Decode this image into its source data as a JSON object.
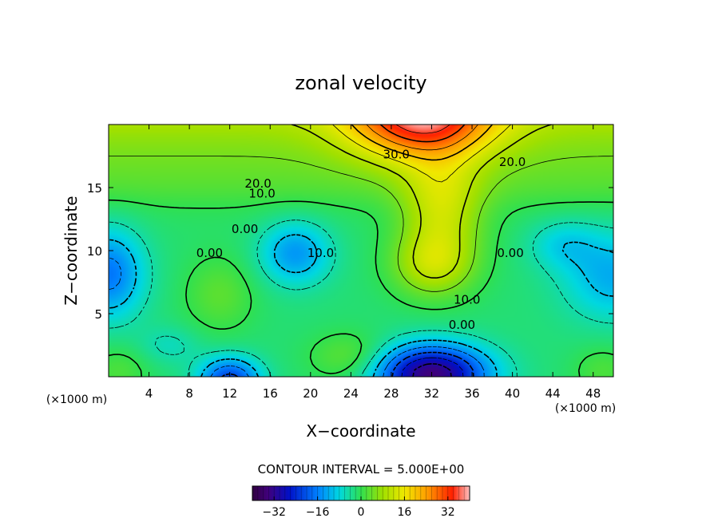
{
  "chart_data": {
    "type": "heatmap",
    "title": "zonal velocity",
    "xlabel": "X−coordinate",
    "ylabel": "Z−coordinate",
    "x_unit_left": "(×1000 m)",
    "x_unit_right": "(×1000 m)",
    "xlim": [
      0,
      50
    ],
    "ylim": [
      0,
      20
    ],
    "x_ticks": [
      4,
      8,
      12,
      16,
      20,
      24,
      28,
      32,
      36,
      40,
      44,
      48
    ],
    "y_ticks": [
      5,
      10,
      15
    ],
    "contour_interval_text": "CONTOUR INTERVAL = 5.000E+00",
    "contour_labels": [
      {
        "text": "30.0",
        "x": 28.5,
        "y": 17.3
      },
      {
        "text": "20.0",
        "x": 40.0,
        "y": 16.7
      },
      {
        "text": "20.0",
        "x": 14.8,
        "y": 15.0
      },
      {
        "text": "10.0",
        "x": 15.2,
        "y": 14.2
      },
      {
        "text": "0.00",
        "x": 13.5,
        "y": 11.4
      },
      {
        "text": "0.00",
        "x": 10.0,
        "y": 9.5
      },
      {
        "text": "10.0",
        "x": 21.0,
        "y": 9.5
      },
      {
        "text": "0.00",
        "x": 39.8,
        "y": 9.5
      },
      {
        "text": "10.0",
        "x": 35.5,
        "y": 5.8
      },
      {
        "text": "0.00",
        "x": 35.0,
        "y": 3.8
      }
    ],
    "colorbar": {
      "ticks": [
        -32,
        -16,
        0,
        16,
        32
      ],
      "tick_labels": [
        "−32",
        "−16",
        "0",
        "16",
        "32"
      ],
      "range": [
        -40,
        40
      ]
    },
    "field_features": [
      {
        "kind": "max",
        "x": 31,
        "y": 20,
        "value": 42
      },
      {
        "kind": "max",
        "x": 32,
        "y": 8.8,
        "value": 21
      },
      {
        "kind": "max",
        "x": 33,
        "y": 13.5,
        "value": 17
      },
      {
        "kind": "min",
        "x": 32,
        "y": 0.6,
        "value": -32
      },
      {
        "kind": "min",
        "x": 12,
        "y": 0.2,
        "value": -20
      },
      {
        "kind": "min",
        "x": 0.5,
        "y": 8.2,
        "value": -15
      },
      {
        "kind": "min",
        "x": 18.5,
        "y": 9.8,
        "value": -12
      },
      {
        "kind": "min",
        "x": 49.5,
        "y": 8.0,
        "value": -10
      }
    ]
  }
}
